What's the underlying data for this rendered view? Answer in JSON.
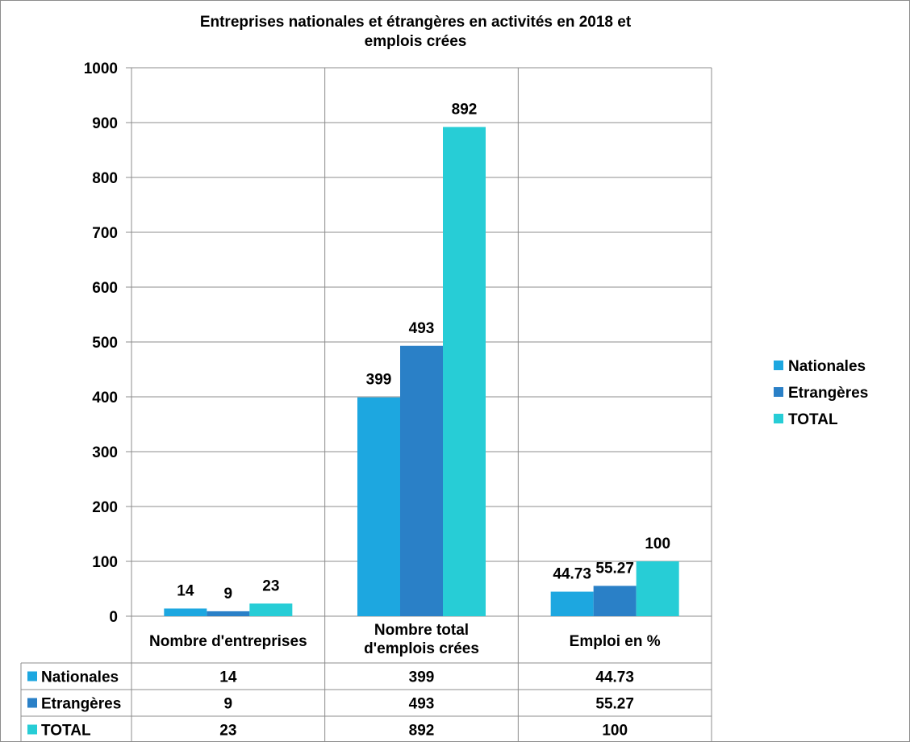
{
  "chart_data": {
    "type": "bar",
    "title_lines": [
      "Entreprises nationales et étrangères en  activités  en 2018 et",
      "emplois crées"
    ],
    "categories": [
      [
        "Nombre d'entreprises"
      ],
      [
        "Nombre total",
        "d'emplois crées"
      ],
      [
        "Emploi en %"
      ]
    ],
    "series": [
      {
        "name": "Nationales",
        "color": "#1DA7E0",
        "values": [
          14,
          399,
          44.73
        ],
        "labels": [
          "14",
          "399",
          "44.73"
        ]
      },
      {
        "name": "Etrangères",
        "color": "#2A80C7",
        "values": [
          9,
          493,
          55.27
        ],
        "labels": [
          "9",
          "493",
          "55.27"
        ]
      },
      {
        "name": "TOTAL",
        "color": "#27CDD6",
        "values": [
          23,
          892,
          100
        ],
        "labels": [
          "23",
          "892",
          "100"
        ]
      }
    ],
    "y_ticks": [
      "0",
      "100",
      "200",
      "300",
      "400",
      "500",
      "600",
      "700",
      "800",
      "900",
      "1000"
    ],
    "ylim": [
      0,
      1000
    ],
    "grid": true,
    "legend": "right",
    "data_table": true
  }
}
